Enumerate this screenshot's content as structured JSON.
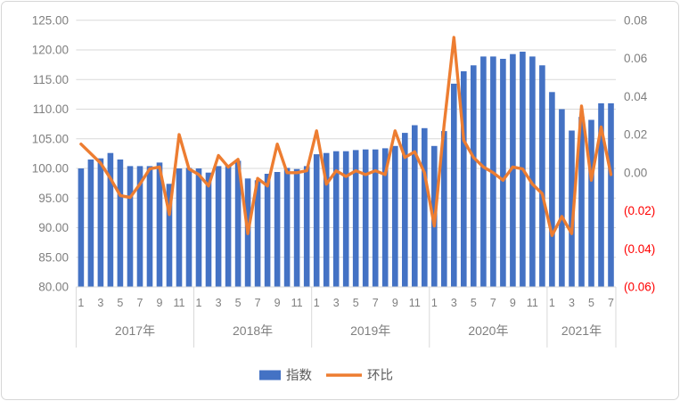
{
  "chart_data": {
    "type": "bar+line",
    "title": "",
    "legend": [
      {
        "name": "指数",
        "swatch": "bar",
        "color": "#4472C4"
      },
      {
        "name": "环比",
        "swatch": "line",
        "color": "#ED7D31"
      }
    ],
    "years": [
      {
        "label": "2017年",
        "months": [
          "1",
          "3",
          "5",
          "7",
          "9",
          "11"
        ],
        "n_bars": 12
      },
      {
        "label": "2018年",
        "months": [
          "1",
          "3",
          "5",
          "7",
          "9",
          "11"
        ],
        "n_bars": 12
      },
      {
        "label": "2019年",
        "months": [
          "1",
          "3",
          "5",
          "7",
          "9",
          "11"
        ],
        "n_bars": 12
      },
      {
        "label": "2020年",
        "months": [
          "1",
          "3",
          "5",
          "7",
          "9",
          "11"
        ],
        "n_bars": 12
      },
      {
        "label": "2021年",
        "months": [
          "1",
          "3",
          "5",
          "7"
        ],
        "n_bars": 7
      }
    ],
    "series": [
      {
        "name": "指数",
        "type": "bar",
        "axis": "left",
        "color": "#4472C4",
        "values": [
          100.0,
          101.5,
          101.7,
          102.6,
          101.5,
          100.4,
          100.4,
          100.4,
          101.0,
          97.4,
          100.0,
          100.1,
          100.0,
          99.3,
          100.4,
          100.6,
          101.3,
          98.3,
          98.0,
          99.1,
          99.4,
          100.1,
          99.9,
          100.4,
          102.4,
          102.6,
          102.9,
          102.9,
          103.1,
          103.2,
          103.2,
          103.4,
          103.8,
          106.0,
          107.3,
          106.8,
          103.8,
          106.3,
          114.3,
          116.4,
          117.4,
          118.9,
          118.9,
          118.5,
          119.3,
          119.7,
          118.9,
          117.4,
          112.9,
          110.0,
          106.4,
          108.7,
          108.2,
          111.0,
          111.0
        ]
      },
      {
        "name": "环比",
        "type": "line",
        "axis": "right",
        "color": "#ED7D31",
        "values": [
          0.015,
          0.01,
          0.005,
          -0.003,
          -0.012,
          -0.013,
          -0.006,
          0.002,
          0.003,
          -0.022,
          0.02,
          0.002,
          -0.001,
          -0.007,
          0.009,
          0.003,
          0.007,
          -0.032,
          -0.003,
          -0.007,
          0.015,
          0.0,
          0.0,
          0.001,
          0.022,
          -0.006,
          0.001,
          -0.002,
          0.001,
          -0.001,
          0.001,
          -0.001,
          0.022,
          0.008,
          0.011,
          0.0,
          -0.028,
          0.025,
          0.071,
          0.017,
          0.008,
          0.003,
          0.0,
          -0.004,
          0.003,
          0.002,
          -0.006,
          -0.011,
          -0.033,
          -0.023,
          -0.032,
          0.035,
          -0.004,
          0.024,
          -0.001
        ]
      }
    ],
    "left_axis": {
      "tick_labels": [
        "125.00",
        "120.00",
        "115.00",
        "110.00",
        "105.00",
        "100.00",
        "95.00",
        "90.00",
        "85.00",
        "80.00"
      ],
      "min": 80,
      "max": 125,
      "step": 5,
      "text_color": "#7F7F7F"
    },
    "right_axis": {
      "tick_labels": [
        "0.08",
        "0.06",
        "0.04",
        "0.02",
        "0.00",
        "(0.02)",
        "(0.04)",
        "(0.06)"
      ],
      "min": -0.06,
      "max": 0.08,
      "step": 0.02,
      "text_color": "#7F7F7F",
      "negative_color": "#FF0000"
    },
    "grid": true,
    "colors": {
      "gridline": "#D9D9D9",
      "axis_line": "#D9D9D9",
      "divider": "#D9D9D9",
      "border": "#D6D6D6",
      "category_text": "#7F7F7F"
    }
  }
}
